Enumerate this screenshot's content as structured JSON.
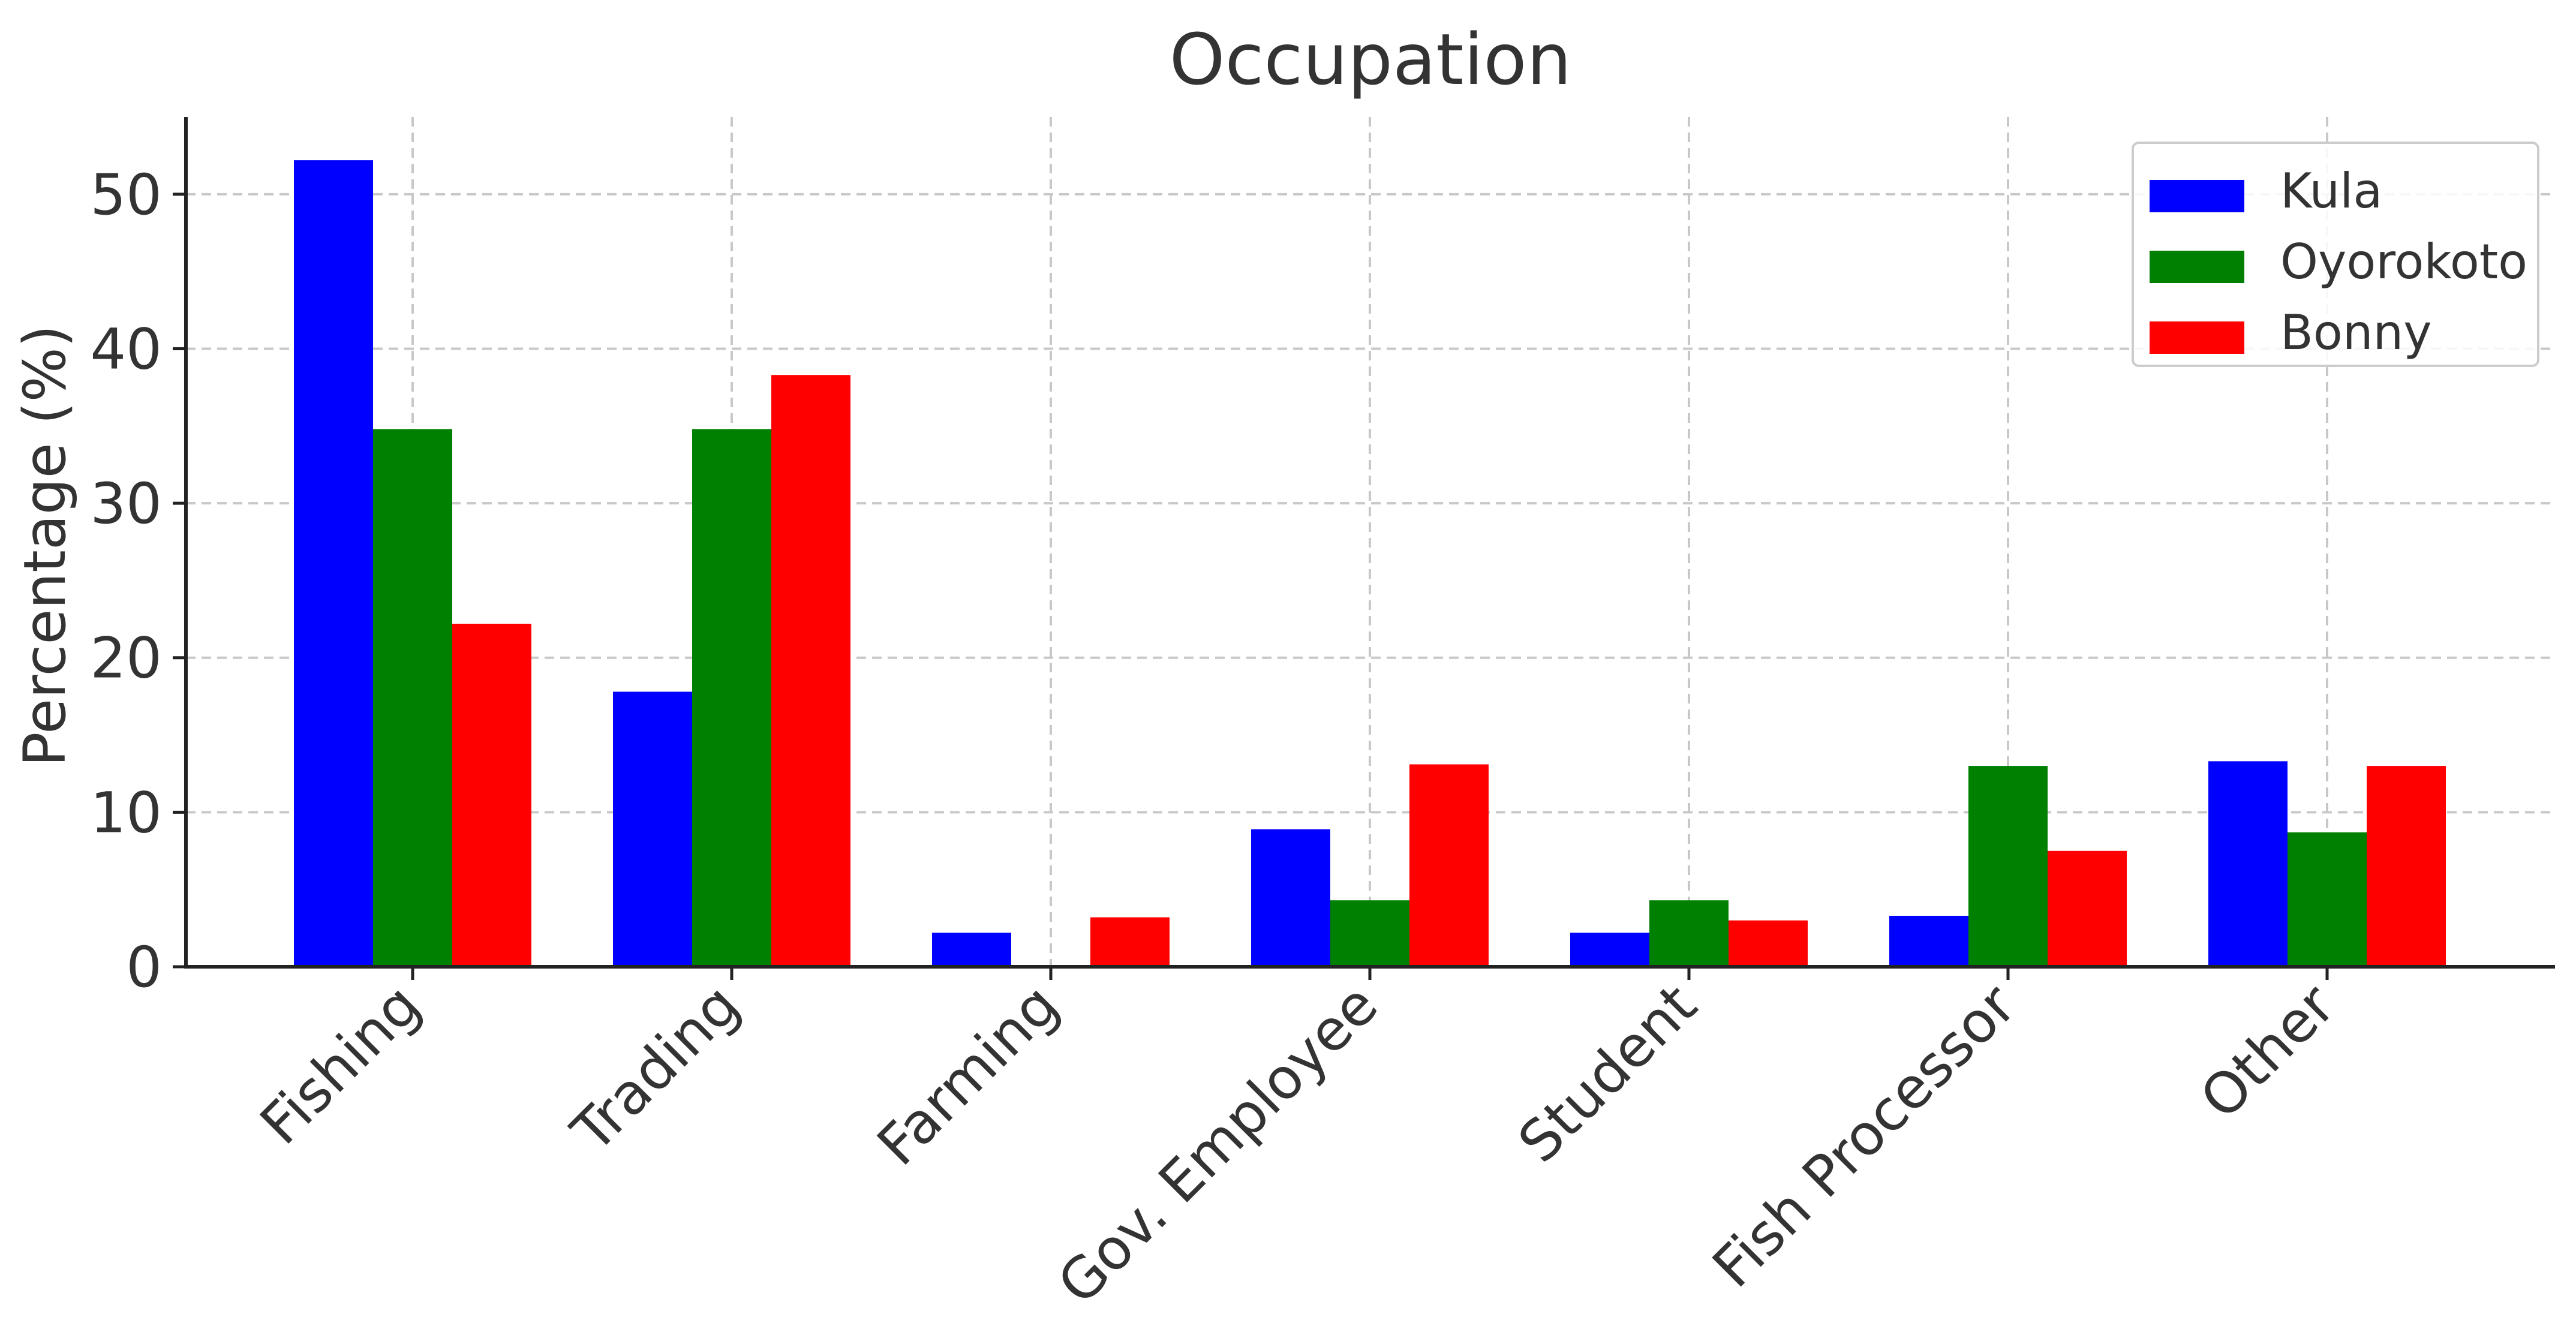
{
  "chart_data": {
    "type": "bar",
    "title": "Occupation",
    "xlabel": "",
    "ylabel": "Percentage (%)",
    "categories": [
      "Fishing",
      "Trading",
      "Farming",
      "Gov. Employee",
      "Student",
      "Fish Processor",
      "Other"
    ],
    "series": [
      {
        "name": "Kula",
        "color": "#0000ff",
        "values": [
          52.2,
          17.8,
          2.2,
          8.9,
          2.2,
          3.3,
          13.3
        ]
      },
      {
        "name": "Oyorokoto",
        "color": "#008000",
        "values": [
          34.8,
          34.8,
          0,
          4.3,
          4.3,
          13.0,
          8.7
        ]
      },
      {
        "name": "Bonny",
        "color": "#ff0000",
        "values": [
          22.2,
          38.3,
          3.2,
          13.1,
          3.0,
          7.5,
          13.0
        ]
      }
    ],
    "ylim": [
      0,
      55
    ],
    "yticks": [
      0,
      10,
      20,
      30,
      40,
      50
    ],
    "grid": true,
    "legend_position": "top-right"
  }
}
